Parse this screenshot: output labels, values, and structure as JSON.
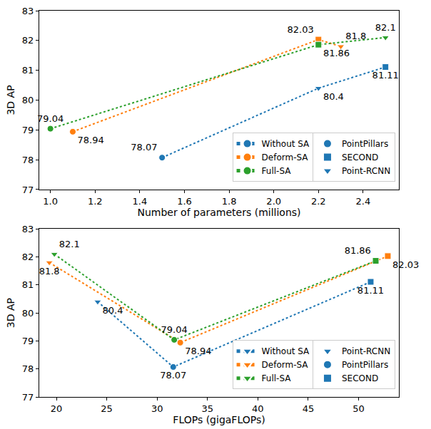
{
  "chart_data": [
    {
      "type": "line",
      "x_label": "Number of parameters (millions)",
      "y_label": "3D AP",
      "xlim": [
        0.95,
        2.56
      ],
      "xticks": [
        {
          "value": 1.0,
          "label": "1.0"
        },
        {
          "value": 1.2,
          "label": "1.2"
        },
        {
          "value": 1.4,
          "label": "1.4"
        },
        {
          "value": 1.6,
          "label": "1.6"
        },
        {
          "value": 1.8,
          "label": "1.8"
        },
        {
          "value": 2.0,
          "label": "2.0"
        },
        {
          "value": 2.2,
          "label": "2.2"
        },
        {
          "value": 2.4,
          "label": "2.4"
        }
      ],
      "ylim": [
        77,
        83
      ],
      "yticks": [
        77,
        78,
        79,
        80,
        81,
        82,
        83
      ],
      "grid": false,
      "legend": "lower right",
      "data_labels": true,
      "series": [
        {
          "name": "Without SA",
          "color": "#1f77b4",
          "line_style": "dotted",
          "x": [
            1.5,
            2.2,
            2.5
          ],
          "values": [
            78.07,
            80.4,
            81.11
          ],
          "models": [
            "PointPillars",
            "Point-RCNN",
            "SECOND"
          ]
        },
        {
          "name": "Deform-SA",
          "color": "#ff7f0e",
          "line_style": "dotted",
          "x": [
            1.1,
            2.2,
            2.3
          ],
          "values": [
            78.94,
            82.03,
            81.8
          ],
          "models": [
            "PointPillars",
            "SECOND",
            "Point-RCNN"
          ]
        },
        {
          "name": "Full-SA",
          "color": "#2ca02c",
          "line_style": "dotted",
          "x": [
            1.0,
            2.2,
            2.5
          ],
          "values": [
            79.04,
            81.86,
            82.1
          ],
          "models": [
            "PointPillars",
            "SECOND",
            "Point-RCNN"
          ]
        }
      ],
      "models": [
        {
          "name": "PointPillars",
          "marker": "circle"
        },
        {
          "name": "SECOND",
          "marker": "square"
        },
        {
          "name": "Point-RCNN",
          "marker": "triangle-down"
        }
      ]
    },
    {
      "type": "line",
      "x_label": "FLOPs (gigaFLOPs)",
      "y_label": "3D AP",
      "xlim": [
        18.3,
        54
      ],
      "xticks": [
        20,
        25,
        30,
        35,
        40,
        45,
        50
      ],
      "ylim": [
        77,
        83
      ],
      "yticks": [
        77,
        78,
        79,
        80,
        81,
        82,
        83
      ],
      "grid": false,
      "legend": "lower right",
      "data_labels": true,
      "series": [
        {
          "name": "Without SA",
          "color": "#1f77b4",
          "line_style": "dotted",
          "x": [
            24.1,
            31.6,
            51.2
          ],
          "values": [
            80.4,
            78.07,
            81.11
          ],
          "models": [
            "Point-RCNN",
            "PointPillars",
            "SECOND"
          ]
        },
        {
          "name": "Deform-SA",
          "color": "#ff7f0e",
          "line_style": "dotted",
          "x": [
            19.3,
            32.3,
            52.9
          ],
          "values": [
            81.8,
            78.94,
            82.03
          ],
          "models": [
            "Point-RCNN",
            "PointPillars",
            "SECOND"
          ]
        },
        {
          "name": "Full-SA",
          "color": "#2ca02c",
          "line_style": "dotted",
          "x": [
            19.8,
            31.7,
            51.7
          ],
          "values": [
            82.1,
            79.04,
            81.86
          ],
          "models": [
            "Point-RCNN",
            "PointPillars",
            "SECOND"
          ]
        }
      ],
      "models": [
        {
          "name": "Point-RCNN",
          "marker": "triangle-down"
        },
        {
          "name": "PointPillars",
          "marker": "circle"
        },
        {
          "name": "SECOND",
          "marker": "square"
        }
      ]
    }
  ]
}
